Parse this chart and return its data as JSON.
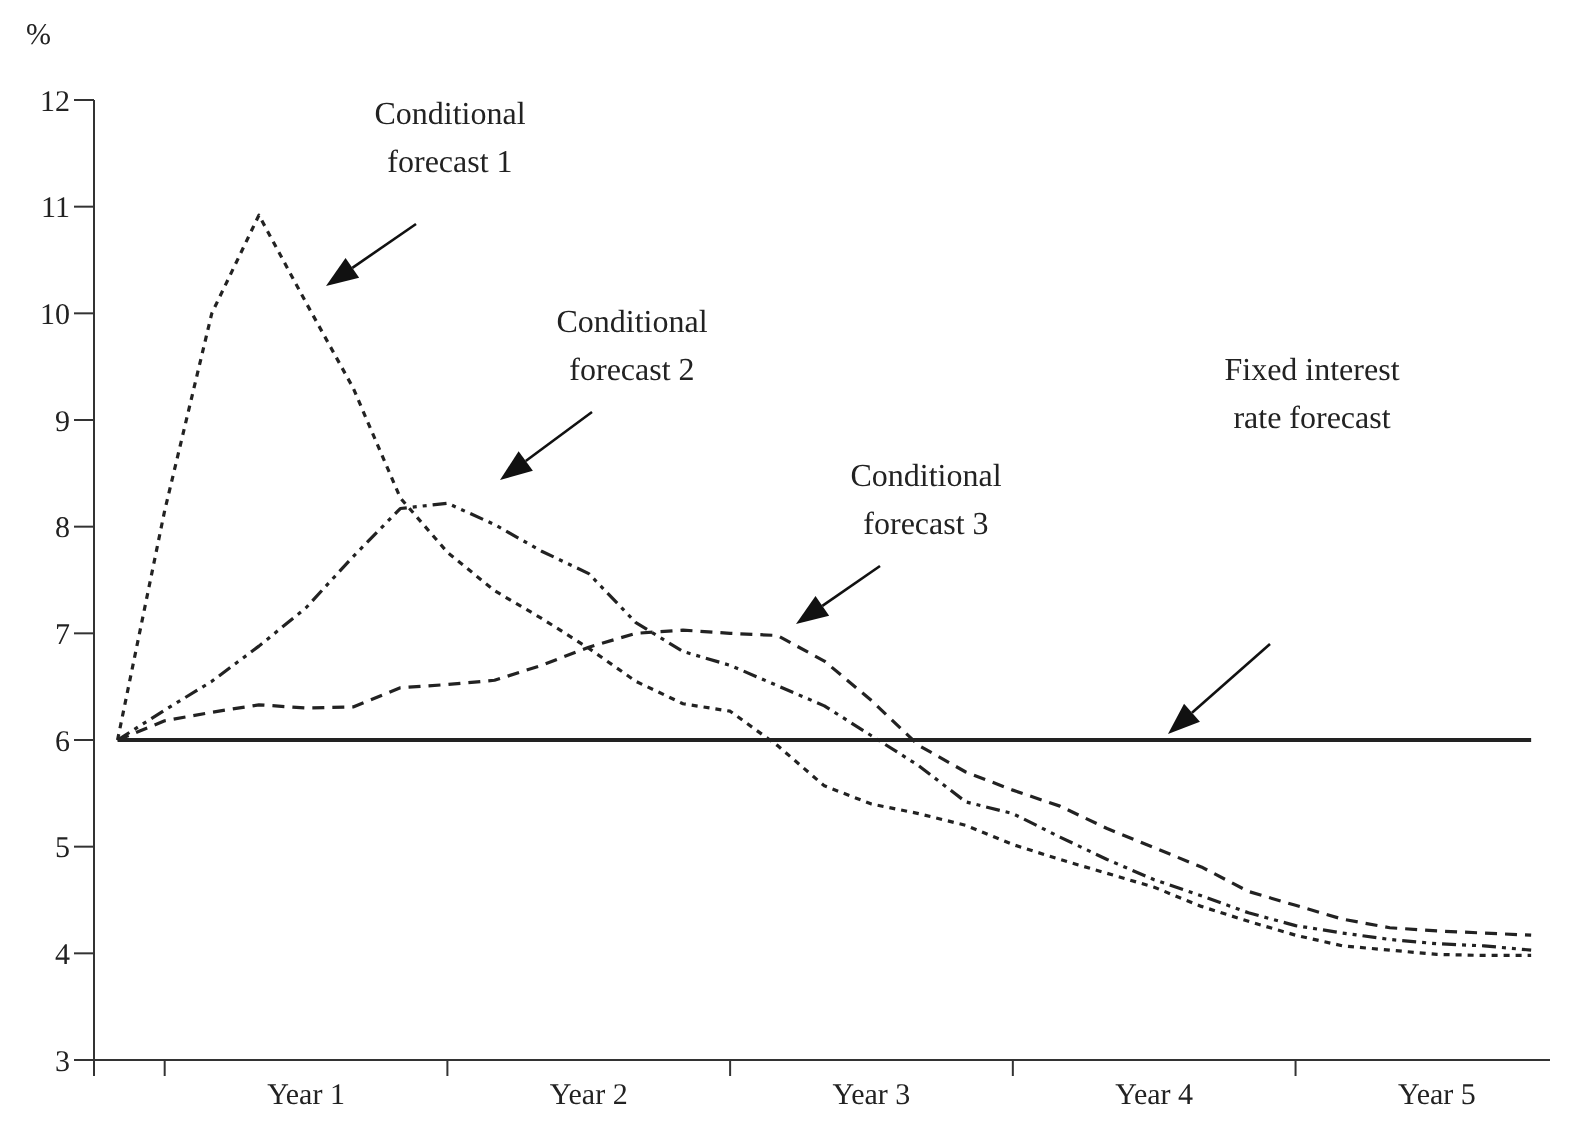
{
  "chart_data": {
    "type": "line",
    "ylabel": "%",
    "ylim": [
      3,
      12
    ],
    "yticks": [
      3,
      4,
      5,
      6,
      7,
      8,
      9,
      10,
      11,
      12
    ],
    "marker": "none",
    "categories": [
      null,
      null,
      null,
      null,
      "Year 1",
      null,
      null,
      null,
      null,
      null,
      "Year 2",
      null,
      null,
      null,
      null,
      null,
      "Year 3",
      null,
      null,
      null,
      null,
      null,
      "Year 4",
      null,
      null,
      null,
      null,
      null,
      "Year 5",
      null,
      null
    ],
    "series": [
      {
        "color": "#222222",
        "line_style": "dotted",
        "values": [
          6,
          8.15,
          10.0,
          10.92,
          10.1,
          9.3,
          8.27,
          7.76,
          7.4,
          7.14,
          6.86,
          6.55,
          6.34,
          6.27,
          5.95,
          5.57,
          5.4,
          5.31,
          5.2,
          5.02,
          4.88,
          4.75,
          4.62,
          4.44,
          4.3,
          4.17,
          4.07,
          4.03,
          3.99,
          3.98,
          3.98
        ]
      },
      {
        "color": "#222222",
        "line_style": "dashdot",
        "values": [
          6,
          6.28,
          6.55,
          6.88,
          7.24,
          7.72,
          8.17,
          8.22,
          8.02,
          7.77,
          7.56,
          7.1,
          6.83,
          6.7,
          6.51,
          6.32,
          6.04,
          5.76,
          5.42,
          5.31,
          5.09,
          4.88,
          4.69,
          4.54,
          4.38,
          4.26,
          4.19,
          4.13,
          4.09,
          4.07,
          4.03
        ]
      },
      {
        "color": "#222222",
        "line_style": "dashed",
        "values": [
          6,
          6.18,
          6.26,
          6.33,
          6.3,
          6.31,
          6.49,
          6.52,
          6.56,
          6.7,
          6.87,
          7.0,
          7.03,
          7.0,
          6.98,
          6.74,
          6.37,
          5.95,
          5.7,
          5.53,
          5.38,
          5.17,
          4.99,
          4.81,
          4.58,
          4.45,
          4.32,
          4.24,
          4.21,
          4.19,
          4.17
        ]
      },
      {
        "color": "#222222",
        "line_style": "solid",
        "values": [
          6,
          6,
          6,
          6,
          6,
          6,
          6,
          6,
          6,
          6,
          6,
          6,
          6,
          6,
          6,
          6,
          6,
          6,
          6,
          6,
          6,
          6,
          6,
          6,
          6,
          6,
          6,
          6,
          6,
          6,
          6
        ]
      }
    ],
    "annotations": [
      "Conditional forecast 1",
      "Conditional forecast 2",
      "Conditional forecast 3",
      "Fixed interest rate forecast"
    ]
  }
}
